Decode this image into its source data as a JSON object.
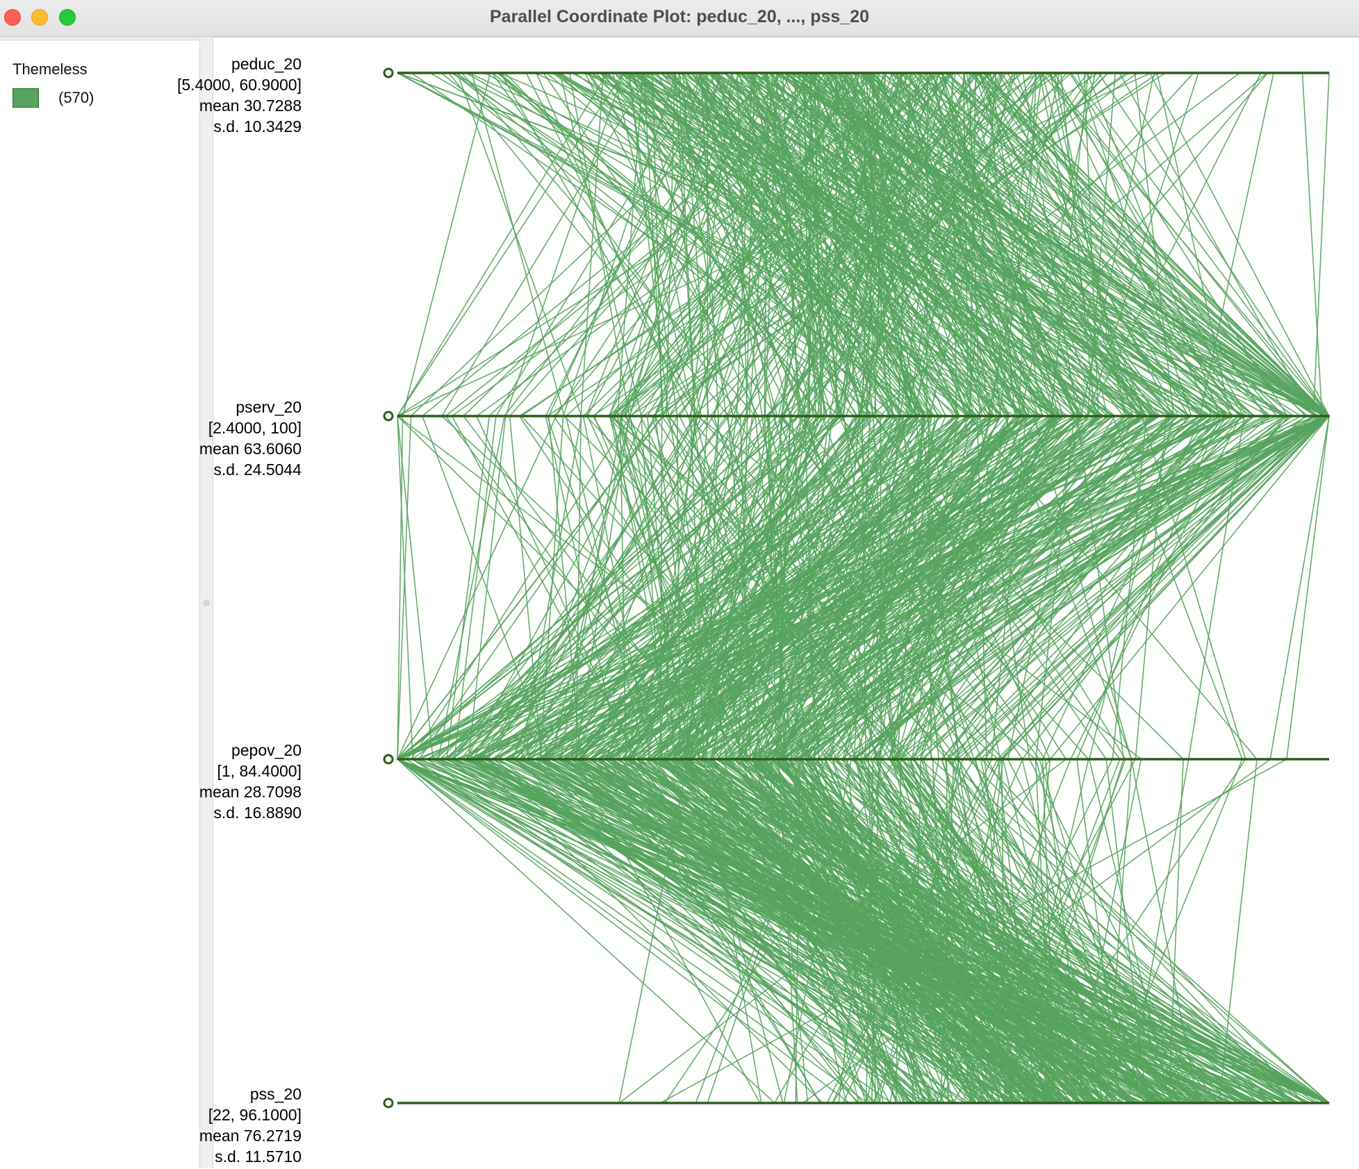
{
  "window": {
    "title": "Parallel Coordinate Plot: peduc_20, ..., pss_20"
  },
  "legend": {
    "title": "Themeless",
    "items": [
      {
        "label": "(570)",
        "color": "#56a35e"
      }
    ]
  },
  "colors": {
    "line": "#56a35e",
    "axis": "#2c5e1a"
  },
  "chart_data": {
    "type": "parallel_coordinates",
    "observation_count": 570,
    "axes": [
      {
        "name": "peduc_20",
        "range_text": "[5.4000, 60.9000]",
        "min": 5.4,
        "max": 60.9,
        "mean_label": "mean",
        "mean": "30.7288",
        "sd_label": "s.d.",
        "sd": "10.3429"
      },
      {
        "name": "pserv_20",
        "range_text": "[2.4000, 100]",
        "min": 2.4,
        "max": 100,
        "mean_label": "mean",
        "mean": "63.6060",
        "sd_label": "s.d.",
        "sd": "24.5044"
      },
      {
        "name": "pepov_20",
        "range_text": "[1, 84.4000]",
        "min": 1,
        "max": 84.4,
        "mean_label": "mean",
        "mean": "28.7098",
        "sd_label": "s.d.",
        "sd": "16.8890"
      },
      {
        "name": "pss_20",
        "range_text": "[22, 96.1000]",
        "min": 22,
        "max": 96.1,
        "mean_label": "mean",
        "mean": "76.2719",
        "sd_label": "s.d.",
        "sd": "11.5710"
      }
    ]
  }
}
